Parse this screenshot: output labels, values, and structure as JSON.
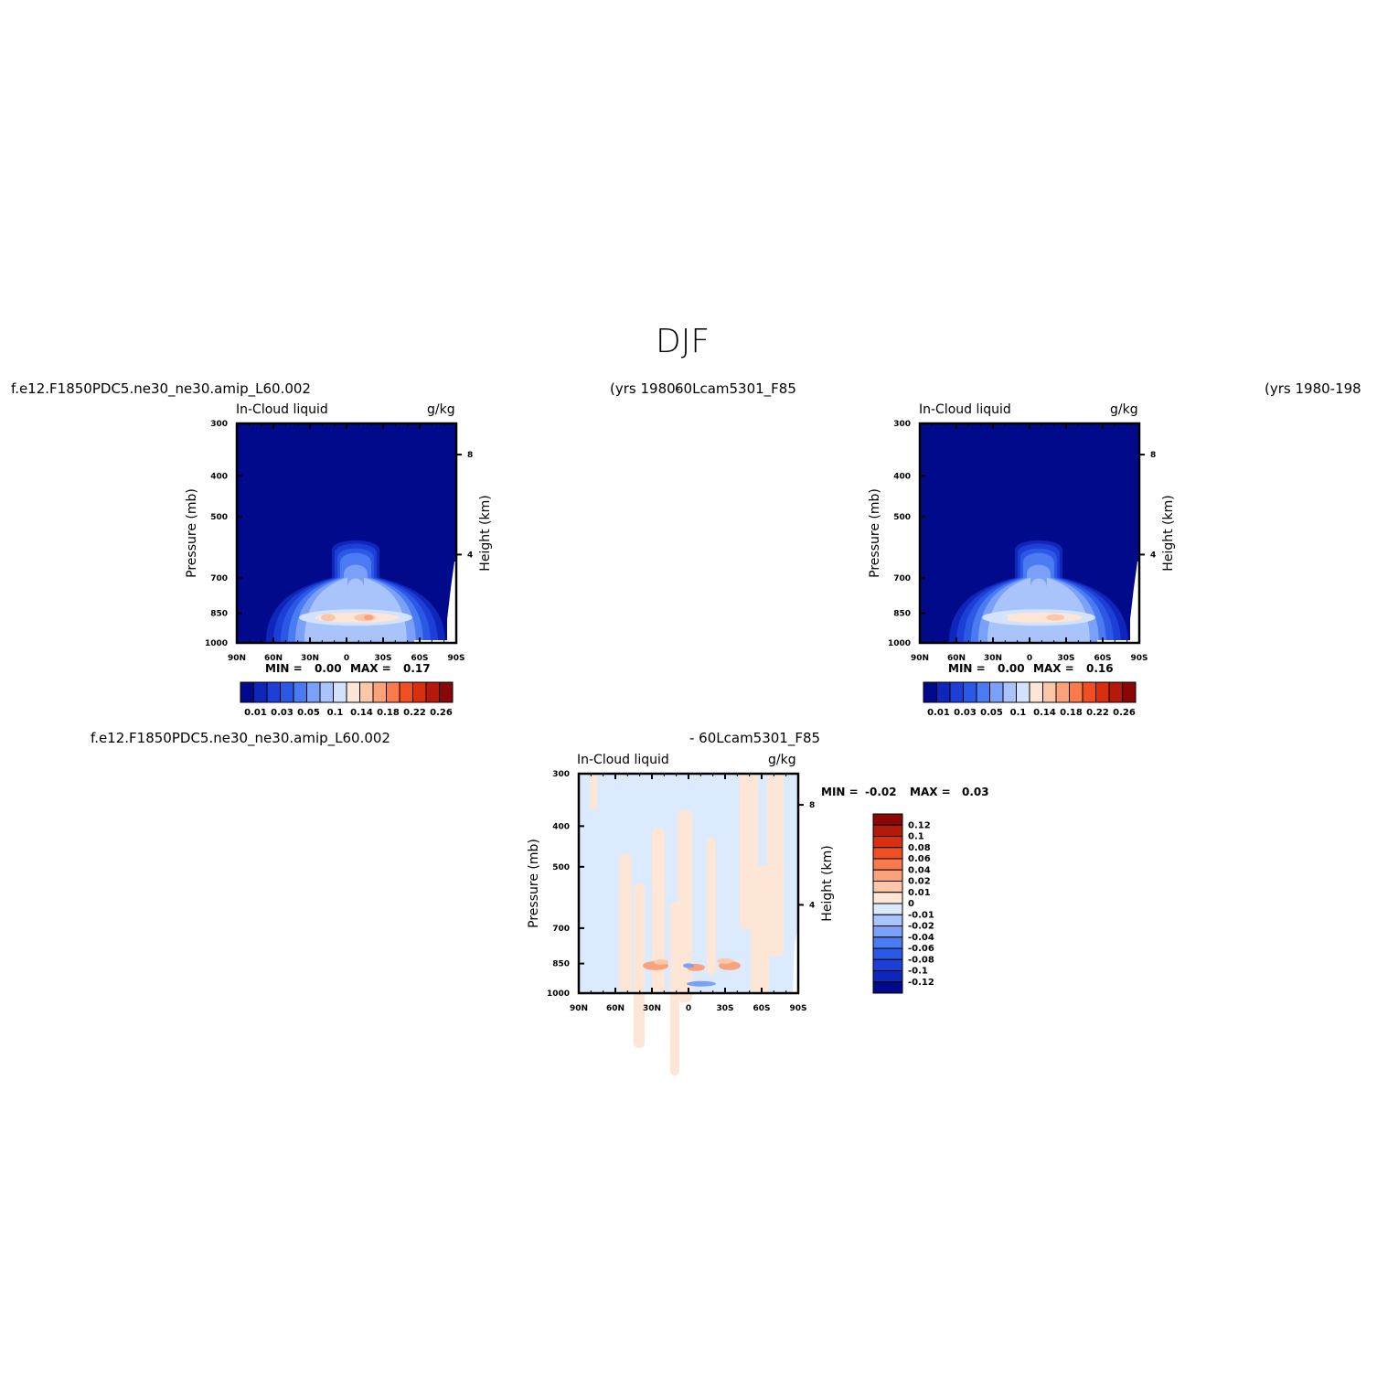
{
  "main_title": "DJF",
  "captions": {
    "panel1_case": "f.e12.F1850PDC5.ne30_ne30.amip_L60.002",
    "panel1_years": "(yrs 1980-",
    "panel2_case": "60Lcam5301_F85",
    "panel2_years": "(yrs 1980-198",
    "panel3_case_left": "f.e12.F1850PDC5.ne30_ne30.amip_L60.002",
    "panel3_case_right": "- 60Lcam5301_F85"
  },
  "colors": {
    "bg": "#020a8c",
    "blues": [
      "#020a8c",
      "#0f26bb",
      "#1d3fd8",
      "#2c58e6",
      "#4a7bf2",
      "#7ba0f8",
      "#a9c4fb",
      "#d3e3fd"
    ],
    "reds": [
      "#fde6d6",
      "#fcc7a8",
      "#fba27a",
      "#f87a4d",
      "#ef4f23",
      "#d8300f",
      "#b5190a",
      "#8a0707"
    ]
  },
  "chart_data": [
    {
      "type": "heatmap",
      "title": "In-Cloud liquid",
      "units": "g/kg",
      "ylabel": "Pressure (mb)",
      "ylabel_right": "Height (km)",
      "xticks": [
        "90N",
        "60N",
        "30N",
        "0",
        "30S",
        "60S",
        "90S"
      ],
      "yticks": [
        "300",
        "400",
        "500",
        "700",
        "850",
        "1000"
      ],
      "yticks_right": [
        "8",
        "4"
      ],
      "ylim": [
        1000,
        300
      ],
      "min_label": "MIN =",
      "min_value": "0.00",
      "max_label": "MAX =",
      "max_value": "0.17",
      "colorbar_levels": [
        "0.01",
        "0.03",
        "0.05",
        "0.1",
        "0.14",
        "0.18",
        "0.22",
        "0.26"
      ],
      "colorbar_boxes": 16
    },
    {
      "type": "heatmap",
      "title": "In-Cloud liquid",
      "units": "g/kg",
      "ylabel": "Pressure (mb)",
      "ylabel_right": "Height (km)",
      "xticks": [
        "90N",
        "60N",
        "30N",
        "0",
        "30S",
        "60S",
        "90S"
      ],
      "yticks": [
        "300",
        "400",
        "500",
        "700",
        "850",
        "1000"
      ],
      "yticks_right": [
        "8",
        "4"
      ],
      "ylim": [
        1000,
        300
      ],
      "min_label": "MIN =",
      "min_value": "0.00",
      "max_label": "MAX =",
      "max_value": "0.16",
      "colorbar_levels": [
        "0.01",
        "0.03",
        "0.05",
        "0.1",
        "0.14",
        "0.18",
        "0.22",
        "0.26"
      ],
      "colorbar_boxes": 16
    },
    {
      "type": "heatmap",
      "title": "In-Cloud liquid",
      "units": "g/kg",
      "ylabel": "Pressure (mb)",
      "ylabel_right": "Height (km)",
      "xticks": [
        "90N",
        "60N",
        "30N",
        "0",
        "30S",
        "60S",
        "90S"
      ],
      "yticks": [
        "300",
        "400",
        "500",
        "700",
        "850",
        "1000"
      ],
      "yticks_right": [
        "8",
        "4"
      ],
      "ylim": [
        1000,
        300
      ],
      "min_label": "MIN =",
      "min_value": "-0.02",
      "max_label": "MAX =",
      "max_value": "0.03",
      "colorbar_levels": [
        "0.12",
        "0.1",
        "0.08",
        "0.06",
        "0.04",
        "0.02",
        "0.01",
        "0",
        "-0.01",
        "-0.02",
        "-0.04",
        "-0.06",
        "-0.08",
        "-0.1",
        "-0.12"
      ],
      "colorbar_boxes": 16
    }
  ]
}
